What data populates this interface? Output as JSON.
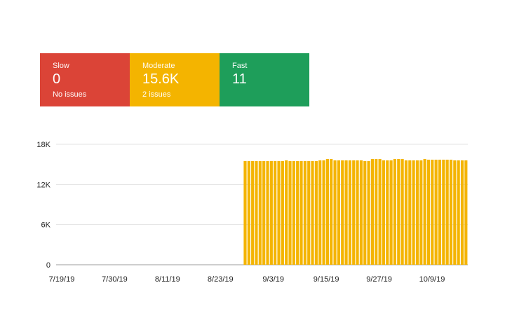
{
  "summary": {
    "cards": [
      {
        "label": "Slow",
        "value": "0",
        "sub": "No issues",
        "color": "#db4437"
      },
      {
        "label": "Moderate",
        "value": "15.6K",
        "sub": "2 issues",
        "color": "#f4b400"
      },
      {
        "label": "Fast",
        "value": "11",
        "sub": "",
        "color": "#1e9e5a"
      }
    ]
  },
  "chart_data": {
    "type": "bar",
    "title": "",
    "xlabel": "",
    "ylabel": "",
    "ylim": [
      0,
      18000
    ],
    "yticks": [
      0,
      6000,
      12000,
      18000
    ],
    "ytick_labels": [
      "0",
      "6K",
      "12K",
      "18K"
    ],
    "x_tick_labels": [
      "7/19/19",
      "7/30/19",
      "8/11/19",
      "8/23/19",
      "9/3/19",
      "9/15/19",
      "9/27/19",
      "10/9/19"
    ],
    "grid": true,
    "bar_color": "#f4b400",
    "series": [
      {
        "name": "Moderate",
        "values": [
          0,
          0,
          0,
          0,
          0,
          0,
          0,
          0,
          0,
          0,
          0,
          0,
          0,
          0,
          0,
          0,
          0,
          0,
          0,
          0,
          0,
          0,
          0,
          0,
          0,
          0,
          0,
          0,
          0,
          0,
          0,
          0,
          0,
          0,
          0,
          0,
          0,
          0,
          0,
          0,
          0,
          0,
          0,
          0,
          0,
          0,
          0,
          0,
          0,
          0,
          15500,
          15500,
          15500,
          15500,
          15500,
          15500,
          15500,
          15500,
          15500,
          15500,
          15500,
          15600,
          15500,
          15500,
          15500,
          15500,
          15500,
          15500,
          15500,
          15500,
          15600,
          15600,
          15800,
          15800,
          15600,
          15600,
          15600,
          15600,
          15600,
          15600,
          15600,
          15600,
          15500,
          15500,
          15800,
          15800,
          15800,
          15600,
          15600,
          15600,
          15800,
          15800,
          15800,
          15600,
          15600,
          15600,
          15600,
          15600,
          15800,
          15700,
          15700,
          15700,
          15700,
          15700,
          15700,
          15700,
          15600,
          15600,
          15600,
          15600
        ]
      }
    ]
  }
}
